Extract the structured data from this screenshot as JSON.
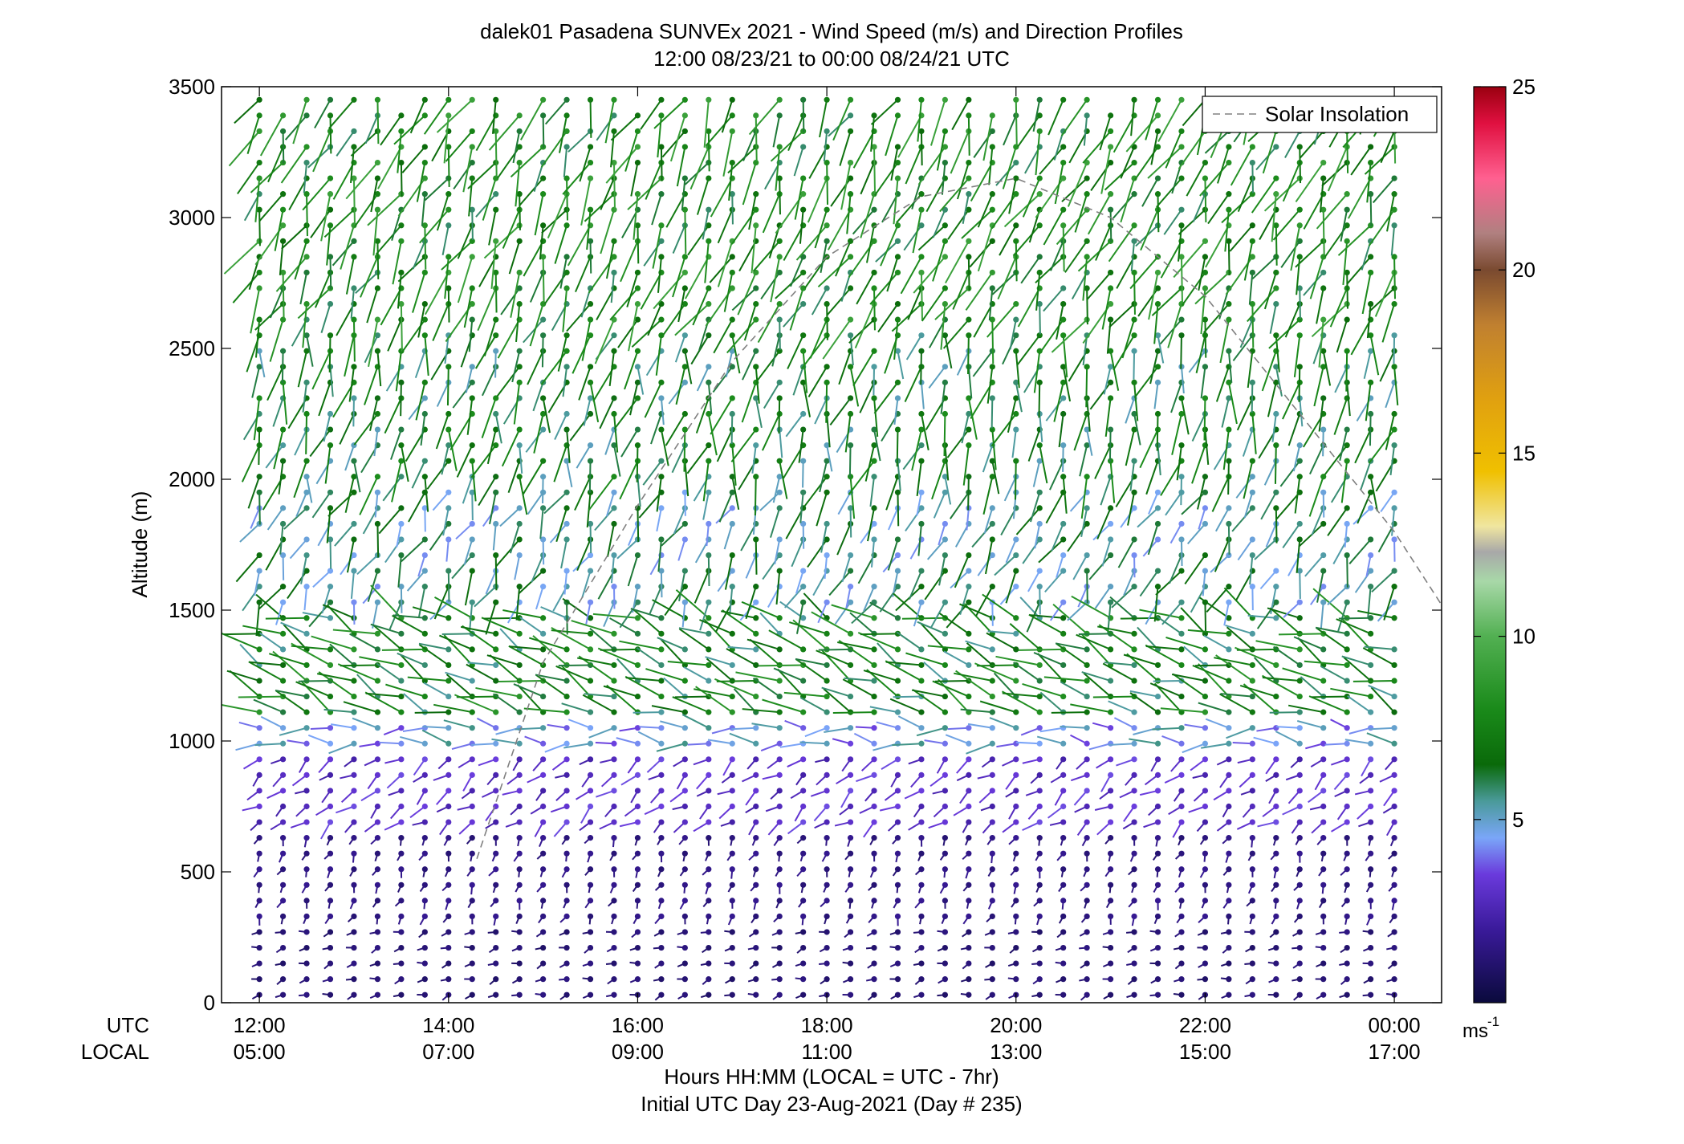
{
  "chart_data": {
    "type": "wind_barb_profile",
    "title": "dalek01 Pasadena SUNVEx 2021 - Wind Speed (m/s) and Direction Profiles",
    "subtitle": "12:00 08/23/21 to 00:00 08/24/21  UTC",
    "ylabel": "Altitude (m)",
    "ylim": [
      0,
      3500
    ],
    "yticks": [
      "0",
      "500",
      "1000",
      "1500",
      "2000",
      "2500",
      "3000",
      "3500"
    ],
    "x_row_label_utc": "UTC",
    "x_row_label_local": "LOCAL",
    "xlim_utc_hours": [
      11.6,
      24.5
    ],
    "xticks_utc": [
      "12:00",
      "14:00",
      "16:00",
      "18:00",
      "20:00",
      "22:00",
      "00:00"
    ],
    "xticks_local": [
      "05:00",
      "07:00",
      "09:00",
      "11:00",
      "13:00",
      "15:00",
      "17:00"
    ],
    "xtick_positions_utc_hours": [
      12,
      14,
      16,
      18,
      20,
      22,
      24
    ],
    "xlabel": "Hours HH:MM  (LOCAL = UTC - 7hr)",
    "xlabel2": "Initial UTC Day 23-Aug-2021 (Day # 235)",
    "legend": [
      {
        "label": "Solar Insolation",
        "style": "dashed",
        "color": "#808080"
      }
    ],
    "legend_position": "top-right",
    "solar_insolation": {
      "peak_utc_hour": 20.0,
      "peak_altitude_m": 3150,
      "samples_utc_hours": [
        14.3,
        15.0,
        16.0,
        17.0,
        18.0,
        19.0,
        20.0,
        21.0,
        22.0,
        23.0,
        24.0,
        24.5
      ],
      "samples_altitude_m": [
        550,
        1300,
        1900,
        2450,
        2850,
        3080,
        3150,
        3000,
        2700,
        2250,
        1800,
        1520
      ]
    },
    "colorbar": {
      "label": "ms",
      "label_exponent": "-1",
      "range": [
        0,
        25
      ],
      "ticks": [
        "5",
        "10",
        "15",
        "20",
        "25"
      ],
      "tick_values": [
        5,
        10,
        15,
        20,
        25
      ],
      "colormap": [
        [
          0,
          "#0a0a3c"
        ],
        [
          2,
          "#3a1a9a"
        ],
        [
          3.5,
          "#6a3adc"
        ],
        [
          4.5,
          "#7aa6f8"
        ],
        [
          5.5,
          "#4a9a9a"
        ],
        [
          6.5,
          "#0a6a0a"
        ],
        [
          8,
          "#1a8a1a"
        ],
        [
          10,
          "#52b052"
        ],
        [
          11.5,
          "#a8d8a8"
        ],
        [
          12.3,
          "#a8a8a8"
        ],
        [
          13,
          "#f0e6a0"
        ],
        [
          14.5,
          "#f0c000"
        ],
        [
          16.5,
          "#e0a010"
        ],
        [
          18.5,
          "#c08030"
        ],
        [
          20,
          "#7a4a30"
        ],
        [
          21,
          "#b08080"
        ],
        [
          22.5,
          "#ff6090"
        ],
        [
          24,
          "#e01040"
        ],
        [
          25,
          "#9a0010"
        ]
      ]
    },
    "profile_times_utc_hours": [
      12.0,
      12.25,
      12.5,
      12.75,
      13.0,
      13.25,
      13.5,
      13.75,
      14.0,
      14.25,
      14.5,
      14.75,
      15.0,
      15.25,
      15.5,
      15.75,
      16.0,
      16.25,
      16.5,
      16.75,
      17.0,
      17.25,
      17.5,
      17.75,
      18.0,
      18.25,
      18.5,
      18.75,
      19.0,
      19.25,
      19.5,
      19.75,
      20.0,
      20.25,
      20.5,
      20.75,
      21.0,
      21.25,
      21.5,
      21.75,
      22.0,
      22.25,
      22.5,
      22.75,
      23.0,
      23.25,
      23.5,
      23.75,
      24.0
    ],
    "wind_layers": [
      {
        "from_m": 0,
        "to_m": 300,
        "speed_ms": 1.2,
        "dir_deg": 250
      },
      {
        "from_m": 300,
        "to_m": 650,
        "speed_ms": 1.5,
        "dir_deg": 200
      },
      {
        "from_m": 650,
        "to_m": 950,
        "speed_ms": 3.0,
        "dir_deg": 230
      },
      {
        "from_m": 950,
        "to_m": 1100,
        "speed_ms": 4.6,
        "dir_deg": 270
      },
      {
        "from_m": 1100,
        "to_m": 1500,
        "speed_ms": 7.0,
        "dir_deg": 290
      },
      {
        "from_m": 1500,
        "to_m": 2000,
        "speed_ms": 5.5,
        "dir_deg": 200
      },
      {
        "from_m": 2000,
        "to_m": 2600,
        "speed_ms": 6.6,
        "dir_deg": 190
      },
      {
        "from_m": 2600,
        "to_m": 3500,
        "speed_ms": 7.5,
        "dir_deg": 200
      }
    ]
  }
}
